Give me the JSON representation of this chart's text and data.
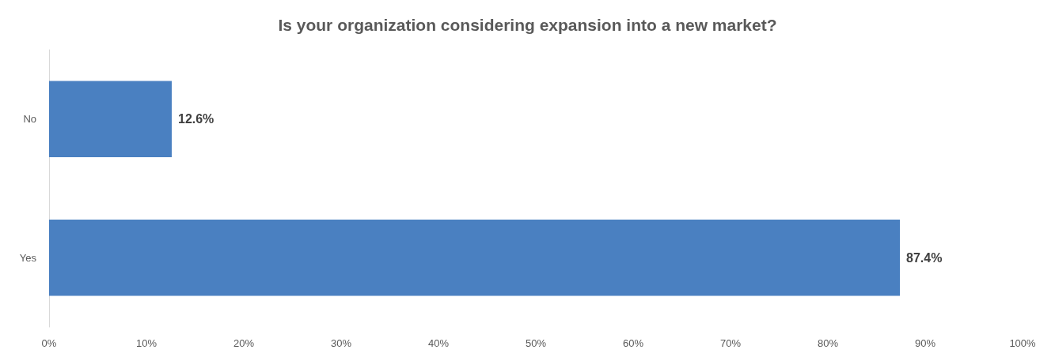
{
  "chart_data": {
    "type": "bar",
    "orientation": "horizontal",
    "title": "Is your organization considering expansion into a new market?",
    "categories": [
      "No",
      "Yes"
    ],
    "values": [
      12.6,
      87.4
    ],
    "value_labels": [
      "12.6%",
      "87.4%"
    ],
    "color": "#4a80c1",
    "xlim": [
      0,
      100
    ],
    "xticks": [
      {
        "value": 0,
        "label": "0%"
      },
      {
        "value": 10,
        "label": "10%"
      },
      {
        "value": 20,
        "label": "20%"
      },
      {
        "value": 30,
        "label": "30%"
      },
      {
        "value": 40,
        "label": "40%"
      },
      {
        "value": 50,
        "label": "50%"
      },
      {
        "value": 60,
        "label": "60%"
      },
      {
        "value": 70,
        "label": "70%"
      },
      {
        "value": 80,
        "label": "80%"
      },
      {
        "value": 90,
        "label": "90%"
      },
      {
        "value": 100,
        "label": "100%"
      }
    ],
    "grid": false
  }
}
